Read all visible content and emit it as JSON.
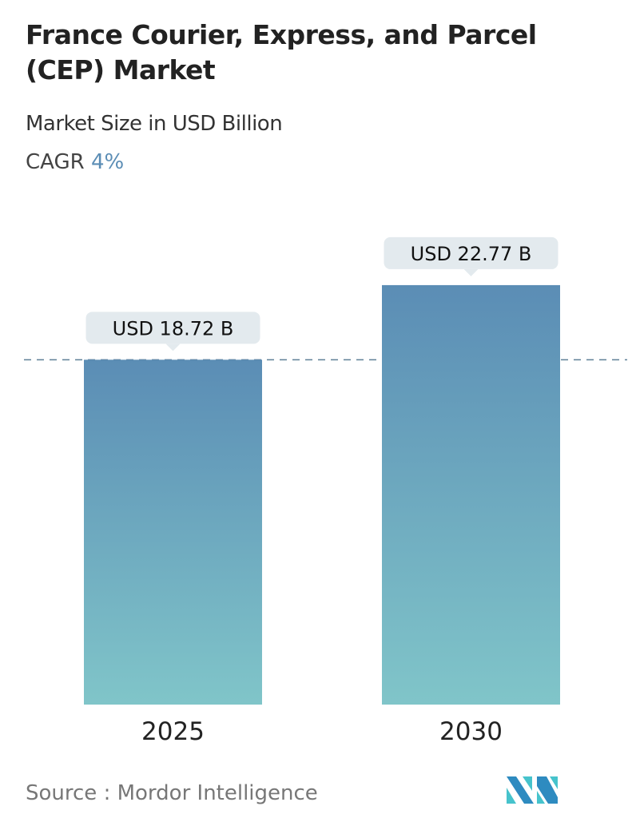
{
  "header": {
    "title": "France Courier, Express, and Parcel (CEP) Market",
    "subtitle": "Market Size in USD Billion",
    "cagr_label": "CAGR",
    "cagr_value": "4%"
  },
  "chart_data": {
    "type": "bar",
    "categories": [
      "2025",
      "2030"
    ],
    "values": [
      18.72,
      22.77
    ],
    "data_labels": [
      "USD 18.72 B",
      "USD 22.77 B"
    ],
    "ylabel": "Market Size in USD Billion",
    "reference_line": 18.72,
    "grid": false,
    "colors": {
      "bar_top": "#5b8db5",
      "bar_bottom": "#80c5c9",
      "label_bg": "#e3eaee",
      "ref_line": "#5e7f96"
    }
  },
  "footer": {
    "source": "Source :  Mordor Intelligence",
    "logo": "Mordor Intelligence"
  }
}
